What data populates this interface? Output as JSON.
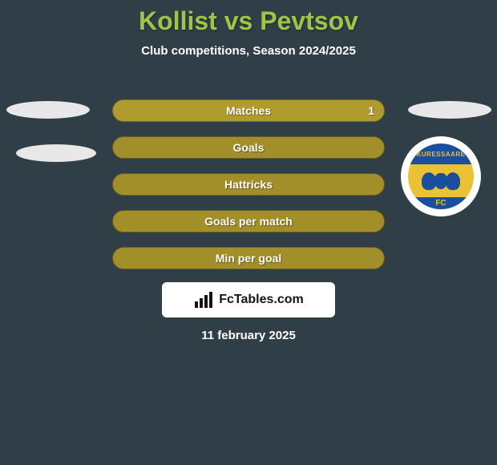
{
  "title": {
    "text": "Kollist vs Pevtsov",
    "color": "#a2c445"
  },
  "subtitle": "Club competitions, Season 2024/2025",
  "bars": {
    "matches": {
      "label": "Matches",
      "value": "1",
      "fill_color": "#b09b2e",
      "border": "#7a6b20"
    },
    "goals": {
      "label": "Goals",
      "fill_color": "#a38f2a",
      "border": "#6a5d1c"
    },
    "hattricks": {
      "label": "Hattricks",
      "fill_color": "#a38f2a",
      "border": "#6a5d1c"
    },
    "gpm": {
      "label": "Goals per match",
      "fill_color": "#a38f2a",
      "border": "#6a5d1c"
    },
    "mpg": {
      "label": "Min per goal",
      "fill_color": "#a38f2a",
      "border": "#6a5d1c"
    }
  },
  "badge": {
    "top_text": "KURESSAARE",
    "bottom_text": "FC",
    "primary_color": "#1a4e9e",
    "secondary_color": "#eac234",
    "bg": "#ffffff"
  },
  "fctables": {
    "text": "FcTables.com",
    "bg": "#ffffff",
    "fg": "#141414"
  },
  "date": "11 february 2025",
  "colors": {
    "background": "#303e47",
    "oval": "#e8e8e8",
    "text": "#ffffff"
  }
}
